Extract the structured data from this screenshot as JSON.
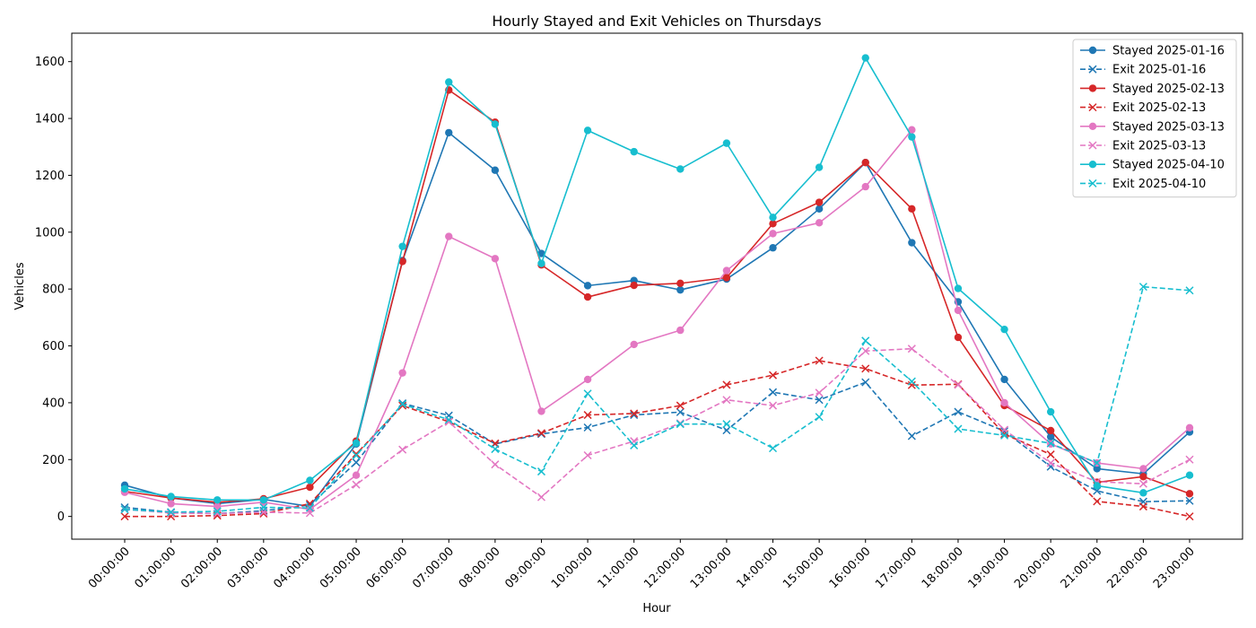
{
  "chart_data": {
    "type": "line",
    "title": "Hourly Stayed and Exit Vehicles on Thursdays",
    "xlabel": "Hour",
    "ylabel": "Vehicles",
    "ylim": [
      -80,
      1700
    ],
    "yticks": [
      0,
      200,
      400,
      600,
      800,
      1000,
      1200,
      1400,
      1600
    ],
    "grid": false,
    "legend_position": "top-right",
    "categories": [
      "00:00:00",
      "01:00:00",
      "02:00:00",
      "03:00:00",
      "04:00:00",
      "05:00:00",
      "06:00:00",
      "07:00:00",
      "08:00:00",
      "09:00:00",
      "10:00:00",
      "11:00:00",
      "12:00:00",
      "13:00:00",
      "14:00:00",
      "15:00:00",
      "16:00:00",
      "17:00:00",
      "18:00:00",
      "19:00:00",
      "20:00:00",
      "21:00:00",
      "22:00:00",
      "23:00:00"
    ],
    "series": [
      {
        "name": "Stayed 2025-01-16",
        "color": "#1f77b4",
        "marker": "circle",
        "dash": "solid",
        "values": [
          110,
          65,
          45,
          60,
          35,
          255,
          900,
          1350,
          1218,
          925,
          812,
          830,
          797,
          835,
          945,
          1082,
          1245,
          963,
          755,
          482,
          280,
          168,
          150,
          297
        ]
      },
      {
        "name": "Exit 2025-01-16",
        "color": "#1f77b4",
        "marker": "x",
        "dash": "dashed",
        "values": [
          32,
          15,
          10,
          20,
          40,
          190,
          398,
          355,
          255,
          290,
          313,
          357,
          367,
          303,
          437,
          410,
          472,
          283,
          368,
          300,
          175,
          90,
          52,
          55
        ]
      },
      {
        "name": "Stayed 2025-02-13",
        "color": "#d62728",
        "marker": "circle",
        "dash": "solid",
        "values": [
          88,
          65,
          50,
          62,
          103,
          265,
          897,
          1500,
          1387,
          885,
          772,
          813,
          820,
          840,
          1030,
          1105,
          1245,
          1082,
          630,
          390,
          302,
          120,
          140,
          80
        ]
      },
      {
        "name": "Exit 2025-02-13",
        "color": "#d62728",
        "marker": "x",
        "dash": "dashed",
        "values": [
          0,
          0,
          3,
          10,
          45,
          220,
          390,
          333,
          257,
          293,
          357,
          362,
          390,
          463,
          497,
          548,
          520,
          462,
          465,
          290,
          218,
          53,
          35,
          0
        ]
      },
      {
        "name": "Stayed 2025-03-13",
        "color": "#e377c2",
        "marker": "circle",
        "dash": "solid",
        "values": [
          85,
          45,
          35,
          50,
          25,
          145,
          505,
          985,
          907,
          370,
          482,
          605,
          655,
          865,
          995,
          1033,
          1160,
          1360,
          725,
          400,
          255,
          188,
          168,
          312
        ]
      },
      {
        "name": "Exit 2025-03-13",
        "color": "#e377c2",
        "marker": "x",
        "dash": "dashed",
        "values": [
          25,
          12,
          10,
          15,
          12,
          112,
          235,
          333,
          183,
          68,
          215,
          265,
          328,
          410,
          390,
          435,
          582,
          590,
          463,
          305,
          188,
          122,
          115,
          200
        ]
      },
      {
        "name": "Stayed 2025-04-10",
        "color": "#17becf",
        "marker": "circle",
        "dash": "solid",
        "values": [
          97,
          70,
          58,
          58,
          127,
          258,
          950,
          1528,
          1380,
          890,
          1358,
          1283,
          1222,
          1313,
          1052,
          1228,
          1613,
          1335,
          802,
          658,
          368,
          108,
          83,
          145
        ]
      },
      {
        "name": "Exit 2025-04-10",
        "color": "#17becf",
        "marker": "x",
        "dash": "dashed",
        "values": [
          25,
          15,
          18,
          32,
          30,
          215,
          395,
          340,
          237,
          158,
          432,
          250,
          325,
          325,
          240,
          350,
          618,
          475,
          308,
          285,
          257,
          188,
          808,
          795
        ]
      }
    ]
  }
}
